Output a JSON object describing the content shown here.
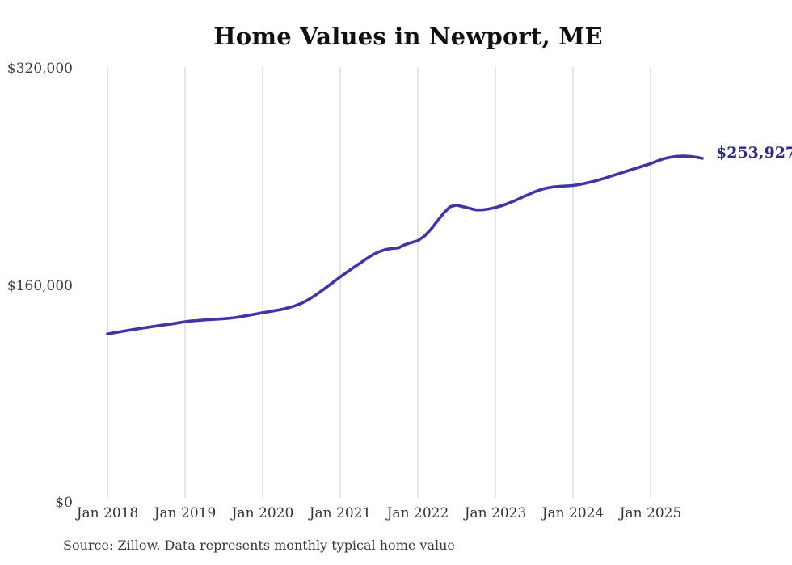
{
  "chart": {
    "title": "Home Values in Newport, ME",
    "end_label": "$253,927",
    "source_note": "Source: Zillow. Data represents monthly typical home value",
    "colors": {
      "line": "#3d35a8",
      "end_label": "#2e2b82",
      "gridline": "#cccccc",
      "axis_text": "#3c3c3c",
      "title_text": "#111111"
    }
  },
  "chart_data": {
    "type": "line",
    "title": "Home Values in Newport, ME",
    "xlabel": "",
    "ylabel": "",
    "ylim": [
      0,
      320000
    ],
    "grid": "vertical-only",
    "legend": "none",
    "x_start_month": "2018-01",
    "x_end_month": "2025-09",
    "final_value": 253927,
    "y_ticks": [
      {
        "label": "$0",
        "value": 0
      },
      {
        "label": "$160,000",
        "value": 160000
      },
      {
        "label": "$320,000",
        "value": 320000
      }
    ],
    "x_ticks": [
      {
        "label": "Jan 2018",
        "month_index": 0
      },
      {
        "label": "Jan 2019",
        "month_index": 12
      },
      {
        "label": "Jan 2020",
        "month_index": 24
      },
      {
        "label": "Jan 2021",
        "month_index": 36
      },
      {
        "label": "Jan 2022",
        "month_index": 48
      },
      {
        "label": "Jan 2023",
        "month_index": 60
      },
      {
        "label": "Jan 2024",
        "month_index": 72
      },
      {
        "label": "Jan 2025",
        "month_index": 84
      }
    ],
    "months": [
      "2018-01",
      "2018-02",
      "2018-03",
      "2018-04",
      "2018-05",
      "2018-06",
      "2018-07",
      "2018-08",
      "2018-09",
      "2018-10",
      "2018-11",
      "2018-12",
      "2019-01",
      "2019-02",
      "2019-03",
      "2019-04",
      "2019-05",
      "2019-06",
      "2019-07",
      "2019-08",
      "2019-09",
      "2019-10",
      "2019-11",
      "2019-12",
      "2020-01",
      "2020-02",
      "2020-03",
      "2020-04",
      "2020-05",
      "2020-06",
      "2020-07",
      "2020-08",
      "2020-09",
      "2020-10",
      "2020-11",
      "2020-12",
      "2021-01",
      "2021-02",
      "2021-03",
      "2021-04",
      "2021-05",
      "2021-06",
      "2021-07",
      "2021-08",
      "2021-09",
      "2021-10",
      "2021-11",
      "2021-12",
      "2022-01",
      "2022-02",
      "2022-03",
      "2022-04",
      "2022-05",
      "2022-06",
      "2022-07",
      "2022-08",
      "2022-09",
      "2022-10",
      "2022-11",
      "2022-12",
      "2023-01",
      "2023-02",
      "2023-03",
      "2023-04",
      "2023-05",
      "2023-06",
      "2023-07",
      "2023-08",
      "2023-09",
      "2023-10",
      "2023-11",
      "2023-12",
      "2024-01",
      "2024-02",
      "2024-03",
      "2024-04",
      "2024-05",
      "2024-06",
      "2024-07",
      "2024-08",
      "2024-09",
      "2024-10",
      "2024-11",
      "2024-12",
      "2025-01",
      "2025-02",
      "2025-03",
      "2025-04",
      "2025-05",
      "2025-06",
      "2025-07",
      "2025-08",
      "2025-09"
    ],
    "series": [
      {
        "name": "Typical home value",
        "values": [
          124500,
          125300,
          126100,
          126900,
          127700,
          128500,
          129200,
          129900,
          130600,
          131300,
          131900,
          132700,
          133500,
          134000,
          134400,
          134800,
          135100,
          135400,
          135700,
          136100,
          136700,
          137500,
          138300,
          139200,
          140100,
          140900,
          141700,
          142600,
          143800,
          145200,
          147000,
          149500,
          152500,
          155800,
          159300,
          162900,
          166500,
          169900,
          173200,
          176400,
          179700,
          182800,
          185100,
          186700,
          187500,
          187900,
          190200,
          191800,
          193200,
          196500,
          201500,
          207500,
          213500,
          218300,
          219500,
          218300,
          217100,
          215900,
          215900,
          216600,
          217700,
          219000,
          220700,
          222700,
          224900,
          227000,
          229100,
          230800,
          232100,
          232900,
          233300,
          233600,
          233900,
          234600,
          235600,
          236700,
          238000,
          239400,
          241000,
          242500,
          244000,
          245500,
          247000,
          248500,
          250000,
          251900,
          253600,
          254700,
          255400,
          255600,
          255400,
          254800,
          253927
        ]
      }
    ]
  }
}
